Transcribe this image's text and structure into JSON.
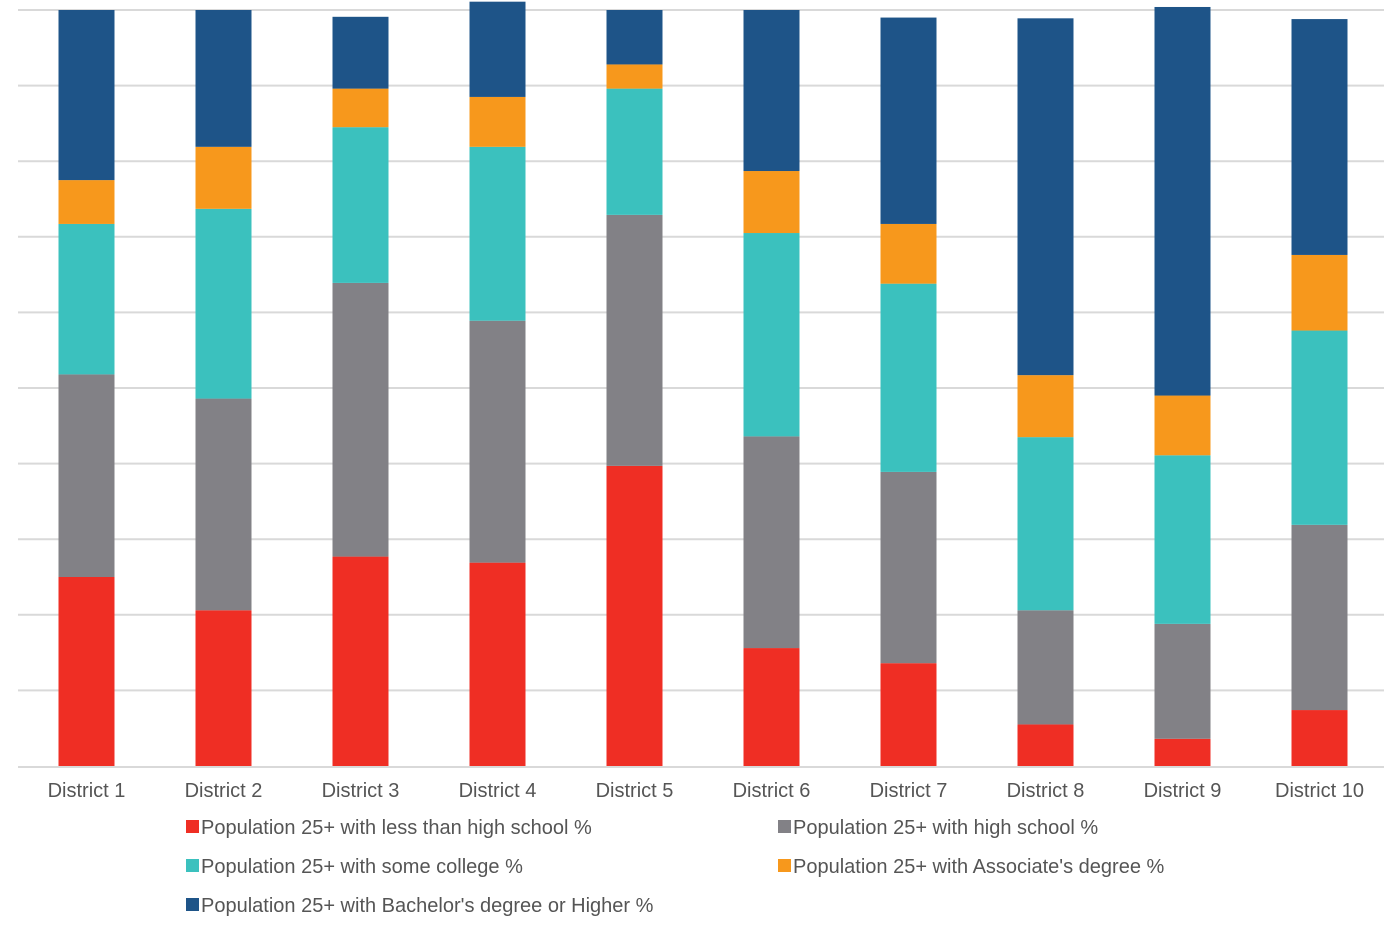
{
  "chart_data": {
    "type": "bar",
    "stacked": true,
    "categories": [
      "District 1",
      "District 2",
      "District 3",
      "District 4",
      "District 5",
      "District 6",
      "District 7",
      "District 8",
      "District 9",
      "District 10"
    ],
    "series": [
      {
        "name": "Population 25+ with less than high school %",
        "color": "#ef2e24",
        "values": [
          25.0,
          20.6,
          27.7,
          26.9,
          39.7,
          15.6,
          13.6,
          5.5,
          3.6,
          7.4
        ]
      },
      {
        "name": "Population 25+ with high school %",
        "color": "#828186",
        "values": [
          26.8,
          28.0,
          36.2,
          32.0,
          33.2,
          28.0,
          25.3,
          15.1,
          15.2,
          24.5
        ]
      },
      {
        "name": "Population 25+ with some college %",
        "color": "#3bc1be",
        "values": [
          19.9,
          25.1,
          20.6,
          23.0,
          16.7,
          26.9,
          24.9,
          22.9,
          22.3,
          25.7
        ]
      },
      {
        "name": "Population 25+ with Associate's degree %",
        "color": "#f7981c",
        "values": [
          5.8,
          8.2,
          5.1,
          6.6,
          3.2,
          8.2,
          7.9,
          8.2,
          7.9,
          10.0
        ]
      },
      {
        "name": "Population 25+ with Bachelor's degree or Higher %",
        "color": "#1e5488",
        "values": [
          22.5,
          18.1,
          9.5,
          12.6,
          7.2,
          21.3,
          27.3,
          47.2,
          51.4,
          31.2
        ]
      }
    ],
    "ylim": [
      0,
      100
    ],
    "grid": true,
    "legend_position": "bottom"
  }
}
